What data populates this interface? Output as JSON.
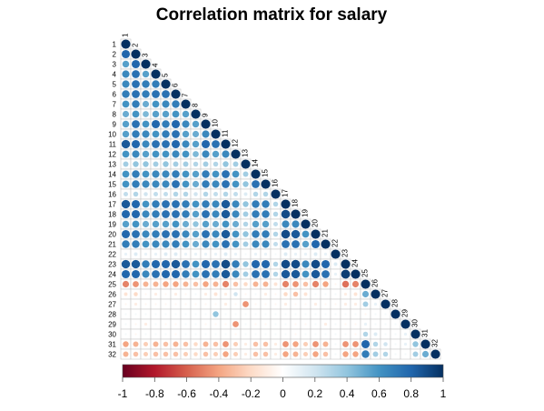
{
  "chart_data": {
    "type": "heatmap",
    "title": "Correlation matrix for salary",
    "variables": [
      "1",
      "2",
      "3",
      "4",
      "5",
      "6",
      "7",
      "8",
      "9",
      "10",
      "11",
      "12",
      "13",
      "14",
      "15",
      "16",
      "17",
      "18",
      "19",
      "20",
      "21",
      "22",
      "23",
      "24",
      "25",
      "26",
      "27",
      "28",
      "29",
      "30",
      "31",
      "32"
    ],
    "layout": "lower-triangle",
    "method": "circle",
    "colorbar": {
      "range": [
        -1,
        1
      ],
      "ticks": [
        -1,
        -0.8,
        -0.6,
        -0.4,
        -0.2,
        0,
        0.2,
        0.4,
        0.6,
        0.8,
        1
      ],
      "tick_labels": [
        "-1",
        "-0.8",
        "-0.6",
        "-0.4",
        "-0.2",
        "0",
        "0.2",
        "0.4",
        "0.6",
        "0.8",
        "1"
      ],
      "colors": [
        "#67001f",
        "#b2182b",
        "#d6604d",
        "#f4a582",
        "#fddbc7",
        "#ffffff",
        "#d1e5f0",
        "#92c5de",
        "#4393c3",
        "#2166ac",
        "#053061"
      ]
    },
    "rows": [
      [
        1
      ],
      [
        0.8,
        1
      ],
      [
        0.55,
        0.8,
        1
      ],
      [
        0.65,
        0.75,
        0.55,
        1
      ],
      [
        0.65,
        0.75,
        0.7,
        0.7,
        1
      ],
      [
        0.7,
        0.75,
        0.7,
        0.75,
        0.75,
        1
      ],
      [
        0.6,
        0.7,
        0.5,
        0.6,
        0.65,
        0.7,
        1
      ],
      [
        0.5,
        0.6,
        0.45,
        0.55,
        0.55,
        0.6,
        0.55,
        1
      ],
      [
        0.55,
        0.75,
        0.6,
        0.8,
        0.7,
        0.8,
        0.65,
        0.55,
        1
      ],
      [
        0.55,
        0.7,
        0.65,
        0.6,
        0.7,
        0.75,
        0.55,
        0.5,
        0.65,
        1
      ],
      [
        0.85,
        0.8,
        0.65,
        0.75,
        0.75,
        0.8,
        0.65,
        0.55,
        0.8,
        0.75,
        1
      ],
      [
        0.6,
        0.65,
        0.55,
        0.6,
        0.6,
        0.65,
        0.6,
        0.45,
        0.65,
        0.55,
        0.65,
        1
      ],
      [
        0.35,
        0.4,
        0.4,
        0.35,
        0.4,
        0.35,
        0.35,
        0.3,
        0.35,
        0.3,
        0.4,
        0.35,
        1
      ],
      [
        0.6,
        0.7,
        0.6,
        0.65,
        0.65,
        0.7,
        0.6,
        0.55,
        0.7,
        0.6,
        0.75,
        0.6,
        0.35,
        1
      ],
      [
        0.6,
        0.7,
        0.65,
        0.65,
        0.65,
        0.75,
        0.6,
        0.5,
        0.7,
        0.65,
        0.75,
        0.6,
        0.4,
        0.75,
        1
      ],
      [
        0.25,
        0.3,
        0.2,
        0.25,
        0.25,
        0.3,
        0.3,
        0.2,
        0.3,
        0.25,
        0.3,
        0.25,
        0.15,
        0.3,
        0.3,
        1
      ],
      [
        0.85,
        0.8,
        0.6,
        0.7,
        0.75,
        0.75,
        0.7,
        0.6,
        0.7,
        0.65,
        0.85,
        0.65,
        0.4,
        0.7,
        0.7,
        0.3,
        1
      ],
      [
        0.8,
        0.8,
        0.65,
        0.7,
        0.75,
        0.75,
        0.7,
        0.55,
        0.75,
        0.65,
        0.85,
        0.65,
        0.35,
        0.7,
        0.7,
        0.3,
        0.9,
        1
      ],
      [
        0.55,
        0.6,
        0.5,
        0.55,
        0.55,
        0.6,
        0.5,
        0.4,
        0.55,
        0.5,
        0.6,
        0.5,
        0.3,
        0.55,
        0.55,
        0.25,
        0.65,
        0.65,
        1
      ],
      [
        0.8,
        0.75,
        0.65,
        0.7,
        0.75,
        0.75,
        0.65,
        0.55,
        0.75,
        0.65,
        0.85,
        0.6,
        0.4,
        0.7,
        0.7,
        0.3,
        0.9,
        0.85,
        0.6,
        1
      ],
      [
        0.7,
        0.7,
        0.6,
        0.65,
        0.65,
        0.7,
        0.6,
        0.5,
        0.65,
        0.6,
        0.75,
        0.6,
        0.35,
        0.65,
        0.65,
        0.25,
        0.75,
        0.75,
        0.55,
        0.8,
        1
      ],
      [
        0.1,
        0.15,
        0.1,
        0.1,
        0.15,
        0.15,
        0.1,
        0.1,
        0.1,
        0.1,
        0.15,
        0.1,
        0.05,
        0.1,
        0.1,
        0.05,
        0.15,
        0.1,
        0.1,
        0.15,
        0.1,
        1
      ],
      [
        0.85,
        0.85,
        0.7,
        0.8,
        0.8,
        0.85,
        0.75,
        0.6,
        0.8,
        0.75,
        0.9,
        0.7,
        0.4,
        0.8,
        0.8,
        0.3,
        0.9,
        0.9,
        0.65,
        0.9,
        0.8,
        0.15,
        1
      ],
      [
        0.8,
        0.8,
        0.65,
        0.75,
        0.8,
        0.8,
        0.7,
        0.6,
        0.75,
        0.7,
        0.85,
        0.65,
        0.35,
        0.75,
        0.75,
        0.3,
        0.85,
        0.85,
        0.6,
        0.85,
        0.75,
        0.1,
        0.95,
        1
      ],
      [
        -0.5,
        -0.45,
        -0.35,
        -0.35,
        -0.4,
        -0.4,
        -0.35,
        -0.3,
        -0.4,
        -0.35,
        -0.5,
        -0.3,
        -0.2,
        -0.35,
        -0.35,
        -0.15,
        -0.5,
        -0.45,
        -0.3,
        -0.5,
        -0.4,
        -0.05,
        -0.55,
        -0.5,
        1
      ],
      [
        -0.15,
        -0.2,
        -0.05,
        -0.1,
        -0.05,
        -0.1,
        -0.05,
        0.05,
        -0.1,
        -0.15,
        -0.1,
        0.2,
        -0.05,
        0.05,
        -0.1,
        -0.05,
        -0.2,
        -0.3,
        -0.15,
        0.05,
        0.05,
        0.05,
        -0.1,
        -0.15,
        0.5,
        1
      ],
      [
        -0.05,
        -0.1,
        -0.05,
        -0.05,
        -0.05,
        -0.05,
        -0.05,
        -0.05,
        -0.05,
        -0.05,
        -0.1,
        -0.05,
        -0.45,
        -0.05,
        -0.05,
        -0.05,
        -0.1,
        -0.05,
        -0.05,
        -0.1,
        -0.05,
        -0.05,
        -0.1,
        -0.1,
        0.35,
        0.1,
        1
      ],
      [
        0.05,
        0.05,
        0.05,
        0.05,
        0.05,
        0.05,
        0.05,
        0.05,
        0.05,
        0.4,
        0.05,
        0.05,
        0.05,
        0.05,
        0.05,
        0.05,
        0.05,
        0.05,
        0.05,
        0.05,
        0.05,
        0.05,
        0.05,
        0.05,
        -0.05,
        0.05,
        0.05,
        1
      ],
      [
        0.05,
        -0.05,
        -0.1,
        0.05,
        -0.05,
        -0.05,
        0.05,
        0.05,
        -0.05,
        -0.05,
        -0.05,
        -0.45,
        0.05,
        -0.05,
        -0.05,
        0.05,
        0.05,
        -0.05,
        -0.05,
        0.05,
        -0.1,
        0.05,
        -0.05,
        -0.05,
        0.1,
        0.05,
        0.05,
        0.05,
        1
      ],
      [
        0.05,
        -0.05,
        0.05,
        0.05,
        0.05,
        -0.05,
        0.05,
        0.05,
        0.05,
        0.05,
        0.05,
        -0.05,
        0.05,
        0.05,
        0.05,
        0.05,
        0.05,
        -0.05,
        0.05,
        0.05,
        0.05,
        0.05,
        0.05,
        -0.05,
        0.3,
        0.15,
        0.05,
        0.05,
        0.1,
        1
      ],
      [
        -0.4,
        -0.35,
        -0.25,
        -0.35,
        -0.3,
        -0.35,
        -0.3,
        -0.2,
        -0.35,
        -0.3,
        -0.45,
        -0.25,
        -0.1,
        -0.3,
        -0.3,
        -0.1,
        -0.45,
        -0.4,
        -0.25,
        -0.45,
        -0.35,
        0.05,
        -0.45,
        -0.45,
        0.8,
        0.3,
        0.2,
        0.05,
        0.1,
        0.4,
        1
      ],
      [
        -0.35,
        -0.3,
        -0.25,
        -0.3,
        -0.3,
        -0.3,
        -0.25,
        -0.2,
        -0.3,
        -0.25,
        -0.4,
        -0.25,
        -0.1,
        -0.3,
        -0.3,
        -0.1,
        -0.4,
        -0.35,
        -0.25,
        -0.4,
        -0.3,
        0.05,
        -0.4,
        -0.4,
        0.7,
        0.35,
        0.3,
        0.05,
        0.05,
        0.35,
        0.5,
        1
      ]
    ]
  }
}
